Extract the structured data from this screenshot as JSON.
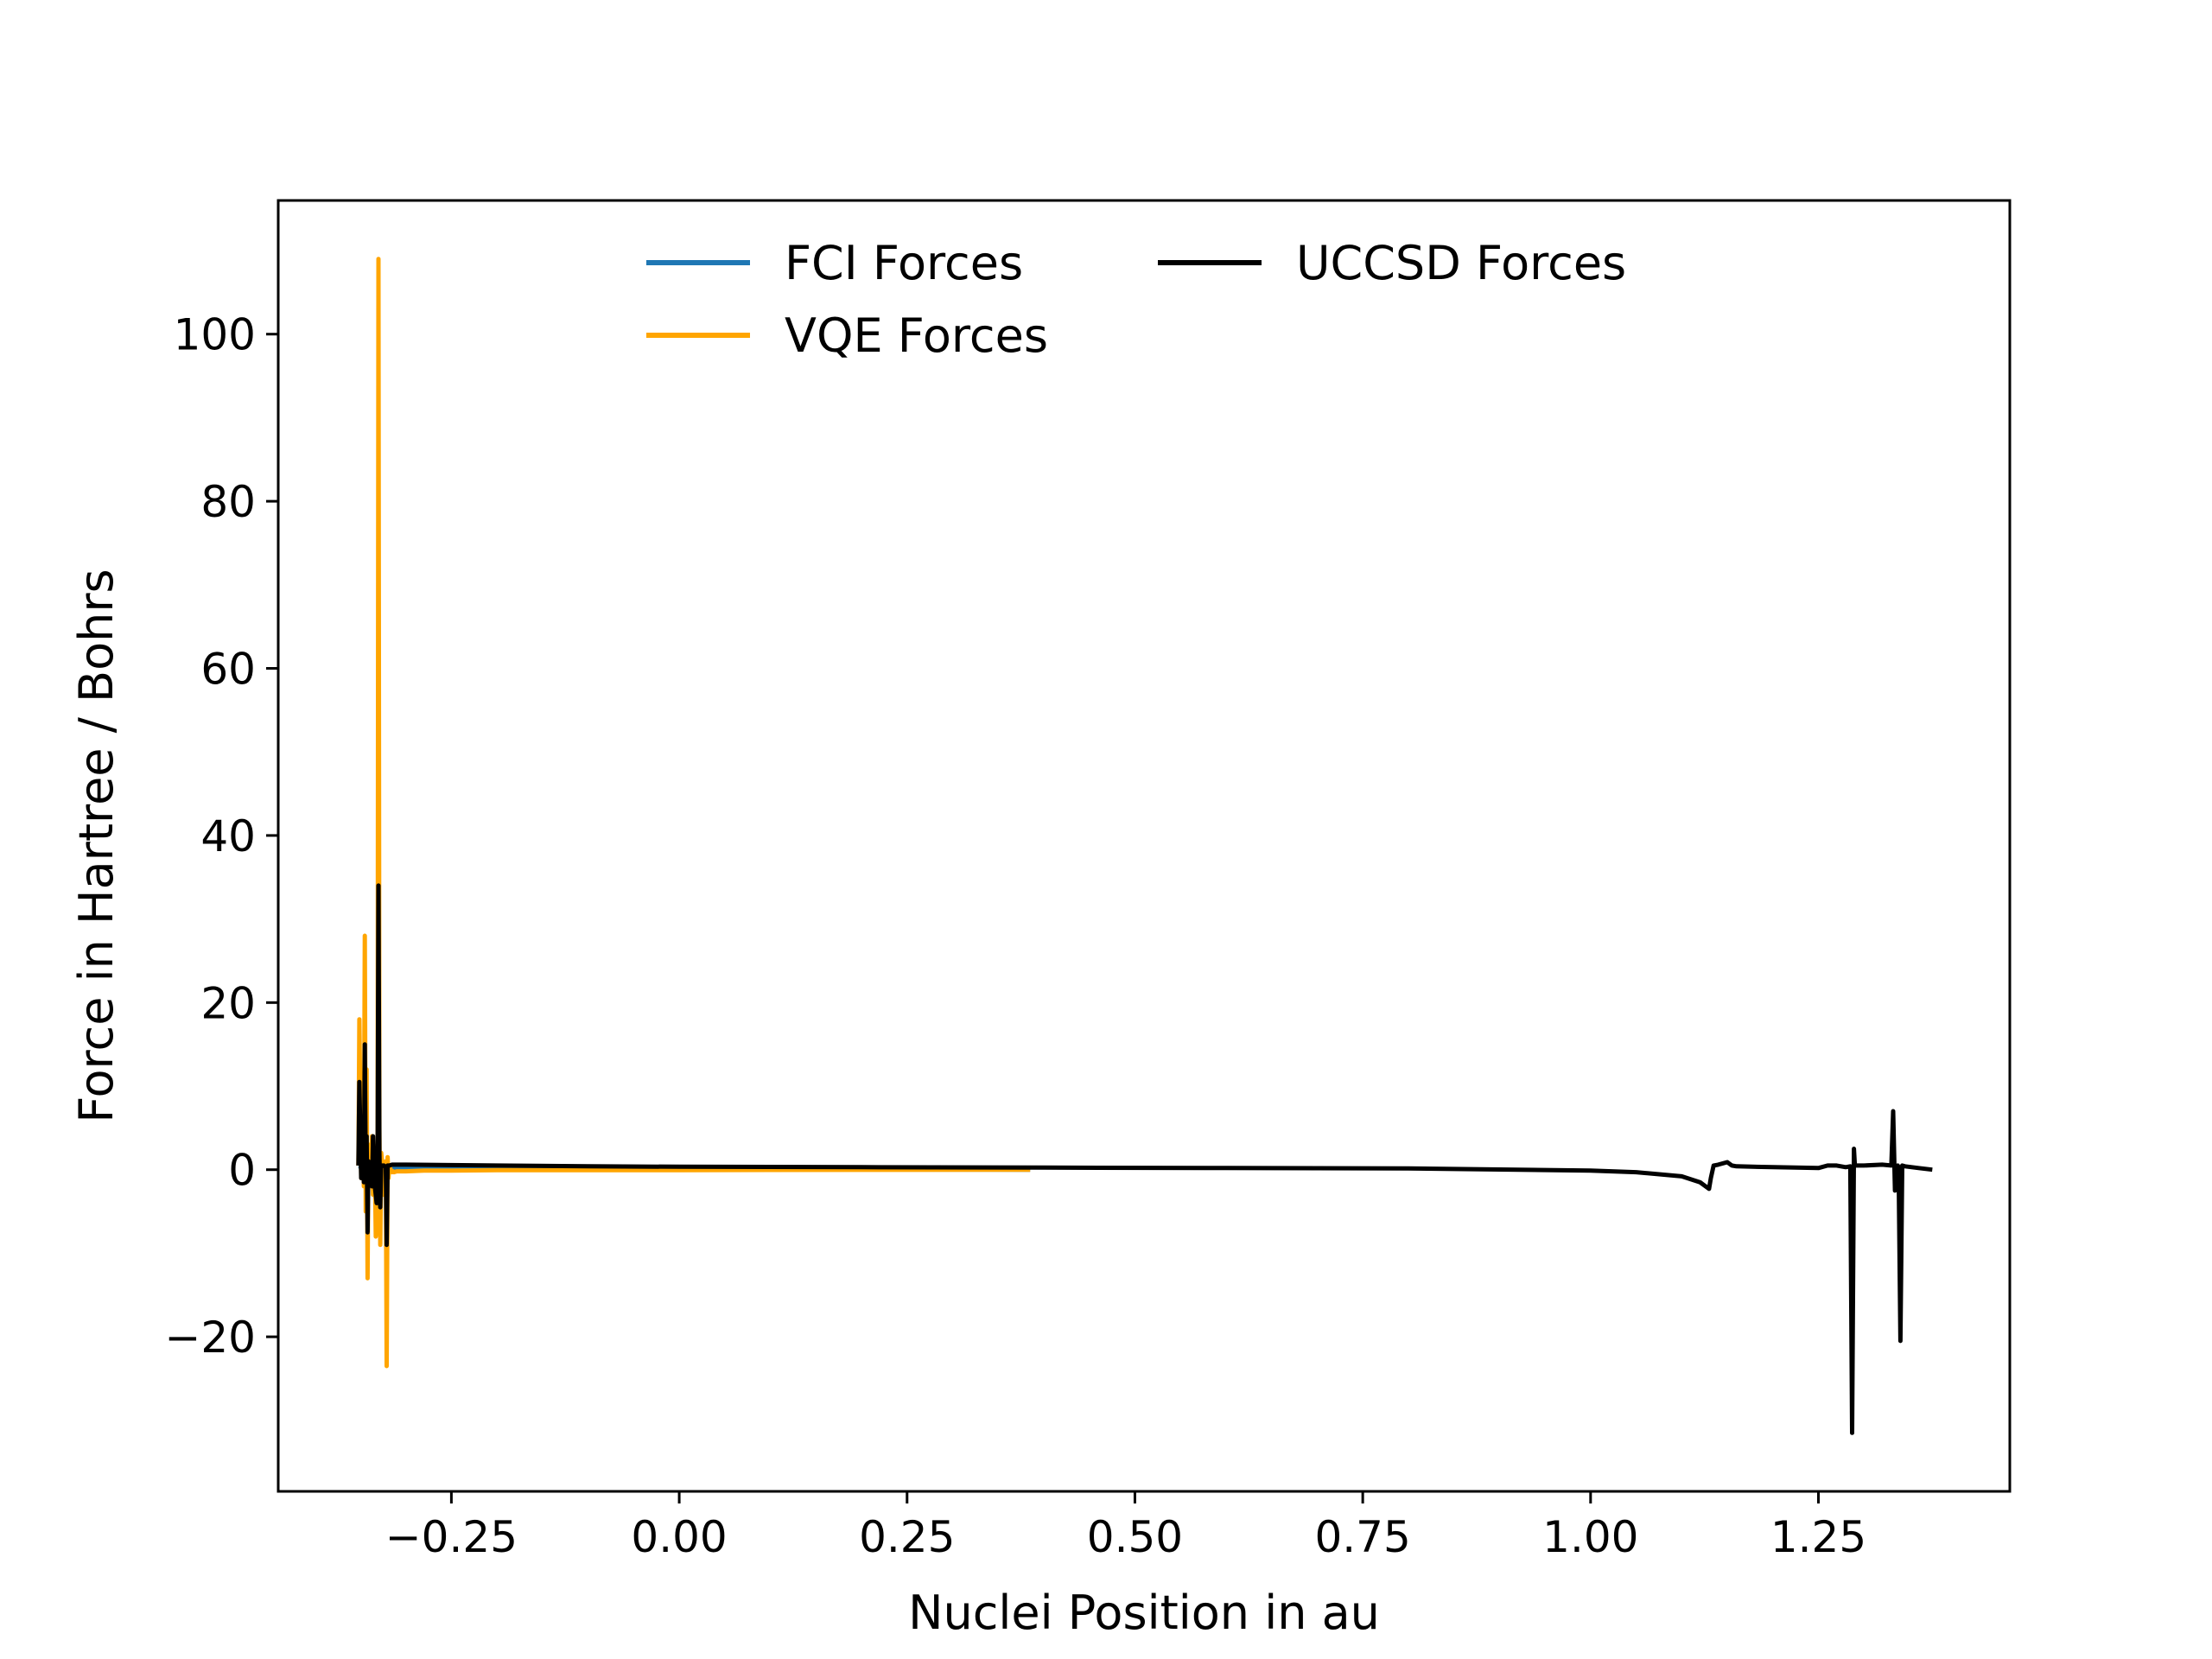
{
  "chart_data": {
    "type": "line",
    "title": "",
    "xlabel": "Nuclei Position in au",
    "ylabel": "Force in Hartree / Bohrs",
    "xlim": [
      -0.44,
      1.46
    ],
    "ylim": [
      -38.5,
      116
    ],
    "xticks": [
      -0.25,
      0.0,
      0.25,
      0.5,
      0.75,
      1.0,
      1.25
    ],
    "xtick_labels": [
      "−0.25",
      "0.00",
      "0.25",
      "0.50",
      "0.75",
      "1.00",
      "1.25"
    ],
    "yticks": [
      -20,
      0,
      20,
      40,
      60,
      80,
      100
    ],
    "ytick_labels": [
      "−20",
      "0",
      "20",
      "40",
      "60",
      "80",
      "100"
    ],
    "grid": false,
    "legend": {
      "placement": "top-center",
      "columns": 2
    },
    "series": [
      {
        "name": "FCI Forces",
        "color": "#1f77b4",
        "x": [
          -0.352,
          -0.34,
          -0.33,
          -0.32,
          -0.31,
          -0.3,
          -0.2,
          0.0,
          0.2,
          0.385
        ],
        "y": [
          0.4,
          0.3,
          0.3,
          0.3,
          0.2,
          0.2,
          0.1,
          0.05,
          0.02,
          0.0
        ]
      },
      {
        "name": "VQE Forces",
        "color": "#ffa500",
        "x": [
          -0.352,
          -0.351,
          -0.349,
          -0.348,
          -0.346,
          -0.345,
          -0.344,
          -0.343,
          -0.342,
          -0.341,
          -0.34,
          -0.339,
          -0.337,
          -0.336,
          -0.334,
          -0.333,
          -0.332,
          -0.331,
          -0.33,
          -0.329,
          -0.328,
          -0.327,
          -0.326,
          -0.325,
          -0.324,
          -0.322,
          -0.321,
          -0.32,
          -0.319,
          -0.318,
          -0.316,
          -0.315,
          -0.314,
          -0.313,
          -0.31,
          -0.3,
          -0.28,
          -0.25,
          -0.2,
          0.0,
          0.2,
          0.385
        ],
        "y": [
          0.5,
          18,
          -1,
          10,
          -2,
          28,
          -5,
          12,
          -13,
          3,
          0.5,
          -2,
          4,
          -3,
          0.5,
          -8,
          -6,
          1,
          109,
          5,
          -9,
          2,
          1,
          -3,
          0.5,
          1,
          -23.5,
          1.5,
          -1,
          0.5,
          -0.2,
          -0.3,
          -0.2,
          -0.3,
          -0.2,
          -0.2,
          -0.1,
          -0.1,
          -0.05,
          -0.05,
          -0.02,
          0.0
        ]
      },
      {
        "name": "UCCSD Forces",
        "color": "#000000",
        "x": [
          -0.352,
          -0.351,
          -0.349,
          -0.348,
          -0.346,
          -0.345,
          -0.344,
          -0.343,
          -0.342,
          -0.341,
          -0.34,
          -0.339,
          -0.337,
          -0.336,
          -0.335,
          -0.334,
          -0.332,
          -0.331,
          -0.33,
          -0.329,
          -0.328,
          -0.327,
          -0.326,
          -0.325,
          -0.324,
          -0.322,
          -0.321,
          -0.32,
          -0.319,
          -0.318,
          -0.315,
          -0.31,
          -0.3,
          -0.2,
          -0.1,
          0.0,
          0.2,
          0.4,
          0.6,
          0.8,
          1.0,
          1.05,
          1.1,
          1.12,
          1.13,
          1.132,
          1.135,
          1.14,
          1.15,
          1.155,
          1.16,
          1.2,
          1.25,
          1.26,
          1.27,
          1.28,
          1.285,
          1.287,
          1.289,
          1.29,
          1.3,
          1.32,
          1.33,
          1.332,
          1.334,
          1.335,
          1.337,
          1.338,
          1.34,
          1.342,
          1.345,
          1.36,
          1.375
        ],
        "y": [
          0.5,
          10.5,
          -1,
          4,
          -1.5,
          15,
          -1,
          4,
          -7.5,
          1,
          -1,
          0.5,
          -2,
          4,
          0.5,
          -2,
          -4,
          1,
          34,
          2,
          -4.5,
          0.5,
          0.5,
          0.5,
          0.5,
          0.3,
          -9,
          0.5,
          0.5,
          0.5,
          0.6,
          0.6,
          0.6,
          0.5,
          0.4,
          0.35,
          0.3,
          0.25,
          0.2,
          0.15,
          -0.1,
          -0.3,
          -0.8,
          -1.5,
          -2.3,
          -1.0,
          0.5,
          0.6,
          0.9,
          0.5,
          0.4,
          0.3,
          0.2,
          0.5,
          0.5,
          0.3,
          0.4,
          -31.5,
          2.5,
          0.5,
          0.5,
          0.6,
          0.5,
          7,
          -2.5,
          -1.5,
          0.5,
          0.3,
          -20.5,
          0.5,
          0.4,
          0.2,
          0.0
        ]
      }
    ]
  }
}
